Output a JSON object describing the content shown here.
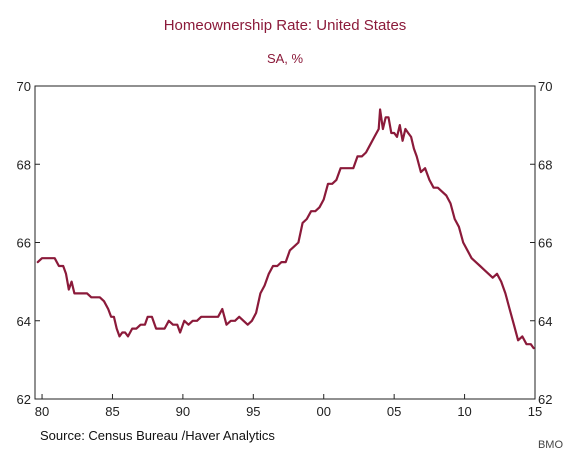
{
  "chart_data": {
    "type": "line",
    "title": "Homeownership Rate: United States",
    "subtitle": "SA, %",
    "source": "Source:  Census Bureau /Haver Analytics",
    "credit": "BMO",
    "xlim": [
      1979.5,
      2015.0
    ],
    "ylim": [
      62,
      70
    ],
    "x_ticks": [
      {
        "value": 1980,
        "label": "80"
      },
      {
        "value": 1985,
        "label": "85"
      },
      {
        "value": 1990,
        "label": "90"
      },
      {
        "value": 1995,
        "label": "95"
      },
      {
        "value": 2000,
        "label": "00"
      },
      {
        "value": 2005,
        "label": "05"
      },
      {
        "value": 2010,
        "label": "10"
      },
      {
        "value": 2015,
        "label": "15"
      }
    ],
    "y_ticks": [
      {
        "value": 62,
        "label": "62"
      },
      {
        "value": 64,
        "label": "64"
      },
      {
        "value": 66,
        "label": "66"
      },
      {
        "value": 68,
        "label": "68"
      },
      {
        "value": 70,
        "label": "70"
      }
    ],
    "grid": false,
    "line_color": "#8b1a3a",
    "series": [
      {
        "x": [
          1979.7,
          1980.0,
          1980.3,
          1980.6,
          1980.9,
          1981.2,
          1981.5,
          1981.7,
          1981.9,
          1982.1,
          1982.3,
          1982.6,
          1982.9,
          1983.2,
          1983.5,
          1983.8,
          1984.1,
          1984.4,
          1984.7,
          1984.9,
          1985.1,
          1985.3,
          1985.5,
          1985.7,
          1985.9,
          1986.1,
          1986.4,
          1986.7,
          1987.0,
          1987.3,
          1987.5,
          1987.8,
          1988.1,
          1988.4,
          1988.7,
          1989.0,
          1989.3,
          1989.6,
          1989.8,
          1990.1,
          1990.4,
          1990.7,
          1991.0,
          1991.3,
          1991.6,
          1991.9,
          1992.2,
          1992.5,
          1992.8,
          1993.1,
          1993.4,
          1993.7,
          1994.0,
          1994.3,
          1994.6,
          1994.9,
          1995.2,
          1995.5,
          1995.8,
          1996.1,
          1996.4,
          1996.7,
          1997.0,
          1997.3,
          1997.6,
          1997.9,
          1998.2,
          1998.5,
          1998.8,
          1999.1,
          1999.4,
          1999.7,
          2000.0,
          2000.3,
          2000.6,
          2000.9,
          2001.2,
          2001.5,
          2001.8,
          2002.1,
          2002.4,
          2002.7,
          2003.0,
          2003.3,
          2003.6,
          2003.9,
          2004.0,
          2004.2,
          2004.4,
          2004.6,
          2004.8,
          2005.0,
          2005.2,
          2005.4,
          2005.6,
          2005.8,
          2006.0,
          2006.2,
          2006.4,
          2006.6,
          2006.9,
          2007.2,
          2007.5,
          2007.8,
          2008.1,
          2008.4,
          2008.7,
          2009.0,
          2009.3,
          2009.6,
          2009.9,
          2010.2,
          2010.5,
          2010.8,
          2011.1,
          2011.4,
          2011.7,
          2012.0,
          2012.3,
          2012.6,
          2012.9,
          2013.2,
          2013.5,
          2013.8,
          2014.1,
          2014.4,
          2014.7,
          2014.9
        ],
        "values": [
          65.5,
          65.6,
          65.6,
          65.6,
          65.6,
          65.4,
          65.4,
          65.2,
          64.8,
          65.0,
          64.7,
          64.7,
          64.7,
          64.7,
          64.6,
          64.6,
          64.6,
          64.5,
          64.3,
          64.1,
          64.1,
          63.8,
          63.6,
          63.7,
          63.7,
          63.6,
          63.8,
          63.8,
          63.9,
          63.9,
          64.1,
          64.1,
          63.8,
          63.8,
          63.8,
          64.0,
          63.9,
          63.9,
          63.7,
          64.0,
          63.9,
          64.0,
          64.0,
          64.1,
          64.1,
          64.1,
          64.1,
          64.1,
          64.3,
          63.9,
          64.0,
          64.0,
          64.1,
          64.0,
          63.9,
          64.0,
          64.2,
          64.7,
          64.9,
          65.2,
          65.4,
          65.4,
          65.5,
          65.5,
          65.8,
          65.9,
          66.0,
          66.5,
          66.6,
          66.8,
          66.8,
          66.9,
          67.1,
          67.5,
          67.5,
          67.6,
          67.9,
          67.9,
          67.9,
          67.9,
          68.2,
          68.2,
          68.3,
          68.5,
          68.7,
          68.9,
          69.4,
          68.9,
          69.2,
          69.2,
          68.8,
          68.8,
          68.7,
          69.0,
          68.6,
          68.9,
          68.8,
          68.7,
          68.4,
          68.2,
          67.8,
          67.9,
          67.6,
          67.4,
          67.4,
          67.3,
          67.2,
          67.0,
          66.6,
          66.4,
          66.0,
          65.8,
          65.6,
          65.5,
          65.4,
          65.3,
          65.2,
          65.1,
          65.2,
          65.0,
          64.7,
          64.3,
          63.9,
          63.5,
          63.6,
          63.4,
          63.4,
          63.3
        ]
      }
    ]
  }
}
